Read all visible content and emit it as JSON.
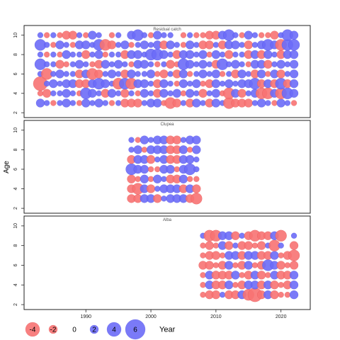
{
  "chart_data": {
    "type": "scatter",
    "style": "bubble",
    "ylabel": "Age",
    "xlabel": "Year",
    "x_ticks": [
      1990,
      2000,
      2010,
      2020
    ],
    "xlim": [
      1980.5,
      2024.5
    ],
    "y_ticks": [
      2,
      4,
      6,
      8,
      10
    ],
    "ylim": [
      1.5,
      11
    ],
    "ages": [
      3,
      4,
      5,
      6,
      7,
      8,
      9,
      10
    ],
    "colors": {
      "positive": "#6c6cf7",
      "negative": "#f77272",
      "positive_stroke": "#3b3bd6",
      "negative_stroke": "#d64040",
      "frame": "#222222"
    },
    "legend": {
      "values": [
        -4,
        -2,
        0,
        2,
        4,
        6
      ],
      "labels": [
        "-4",
        "-2",
        "0",
        "2",
        "4",
        "6"
      ]
    },
    "panels": [
      {
        "title": "Residual catch",
        "years": [
          1983,
          2022
        ],
        "rows": {
          "10": [
            1,
            -1,
            1,
            -1,
            -2,
            -2,
            1,
            -1,
            2,
            1,
            0,
            -1,
            1,
            0,
            2,
            3,
            1,
            -1,
            2,
            1,
            1,
            0,
            -1,
            1,
            -1,
            -1,
            -2,
            -2,
            2,
            3,
            1,
            -1,
            2,
            1,
            -1,
            -1,
            -2,
            1,
            3,
            2
          ],
          "9": [
            3,
            1,
            -1,
            2,
            1,
            -1,
            2,
            2,
            1,
            3,
            -3,
            -2,
            1,
            2,
            -1,
            1,
            2,
            1,
            2,
            -2,
            2,
            1,
            -1,
            2,
            1,
            -2,
            -2,
            1,
            -2,
            2,
            2,
            1,
            -2,
            1,
            2,
            3,
            2,
            -3,
            3,
            3
          ],
          "8": [
            1,
            -1,
            1,
            -1,
            2,
            1,
            1,
            -2,
            1,
            2,
            -1,
            1,
            1,
            -2,
            2,
            2,
            1,
            3,
            3,
            2,
            1,
            -2,
            2,
            2,
            1,
            2,
            -1,
            2,
            1,
            -2,
            1,
            1,
            -2,
            2,
            -2,
            2,
            1,
            -2,
            2,
            2
          ],
          "7": [
            3,
            1,
            1,
            -2,
            -1,
            1,
            2,
            1,
            -1,
            -2,
            2,
            1,
            2,
            1,
            -1,
            2,
            2,
            1,
            -1,
            1,
            -2,
            -1,
            3,
            2,
            1,
            2,
            1,
            -2,
            3,
            1,
            2,
            1,
            -1,
            2,
            2,
            -2,
            1,
            2,
            1,
            2
          ],
          "6": [
            1,
            -3,
            1,
            2,
            1,
            1,
            -2,
            2,
            -3,
            -2,
            1,
            2,
            1,
            -2,
            2,
            1,
            1,
            2,
            -1,
            -2,
            1,
            -2,
            2,
            -1,
            1,
            2,
            1,
            2,
            -1,
            1,
            -2,
            2,
            1,
            -2,
            2,
            -1,
            2,
            -2,
            1,
            2
          ],
          "5": [
            -4,
            1,
            2,
            1,
            2,
            2,
            -2,
            -2,
            2,
            3,
            2,
            1,
            -3,
            3,
            -3,
            2,
            2,
            1,
            -2,
            2,
            1,
            -1,
            2,
            1,
            2,
            -1,
            -2,
            2,
            1,
            2,
            1,
            2,
            2,
            3,
            -2,
            2,
            -2,
            3,
            -2,
            2
          ],
          "4": [
            -1,
            -2,
            1,
            1,
            2,
            1,
            -1,
            3,
            2,
            1,
            -2,
            2,
            1,
            -2,
            1,
            -1,
            2,
            1,
            -2,
            2,
            1,
            2,
            -1,
            2,
            1,
            -2,
            1,
            2,
            -1,
            -3,
            2,
            -2,
            1,
            2,
            -3,
            -3,
            2,
            -3,
            3,
            2
          ],
          "3": [
            2,
            1,
            -1,
            1,
            2,
            1,
            -1,
            2,
            1,
            2,
            1,
            -1,
            1,
            -2,
            -2,
            -2,
            1,
            2,
            2,
            -1,
            -3,
            -2,
            1,
            -2,
            2,
            1,
            -2,
            2,
            1,
            -3,
            -2,
            -2,
            -2,
            1,
            2,
            1,
            -1,
            2,
            1,
            -1
          ]
        }
      },
      {
        "title": "Clupea",
        "years": [
          1997,
          2007
        ],
        "rows": {
          "9": [
            1,
            -1,
            2,
            1,
            2,
            2,
            -2,
            -2,
            1,
            2,
            2
          ],
          "8": [
            1,
            2,
            -1,
            2,
            2,
            2,
            -2,
            -2,
            2,
            -1,
            2
          ],
          "7": [
            -2,
            2,
            2,
            -2,
            1,
            2,
            -2,
            -2,
            2,
            2,
            1
          ],
          "6": [
            3,
            2,
            2,
            -1,
            -1,
            2,
            2,
            -1,
            2,
            3,
            1
          ],
          "5": [
            -2,
            -1,
            2,
            -1,
            2,
            1,
            -2,
            -2,
            2,
            -1,
            -1
          ],
          "4": [
            -2,
            -3,
            2,
            -2,
            1,
            2,
            2,
            2,
            -2,
            2,
            -2
          ],
          "3": [
            -2,
            -2,
            2,
            2,
            -2,
            1,
            2,
            2,
            2,
            -2,
            -3
          ]
        }
      },
      {
        "title": "Alba",
        "years": [
          2008,
          2022
        ],
        "rows": {
          "9": [
            1,
            -3,
            -3,
            2,
            2,
            -2,
            1,
            -2,
            -3,
            -2,
            -2,
            2,
            -3,
            0,
            1
          ],
          "8": [
            -1,
            -2,
            -1,
            2,
            -2,
            1,
            -2,
            -2,
            -1,
            -2,
            1,
            -3,
            1,
            0,
            -2
          ],
          "7": [
            -1,
            -2,
            -2,
            -1,
            2,
            2,
            -2,
            2,
            2,
            -2,
            -2,
            2,
            -1,
            -2,
            -3
          ],
          "6": [
            -2,
            -2,
            -1,
            -2,
            2,
            -1,
            -2,
            2,
            -1,
            -2,
            3,
            2,
            -2,
            -1,
            -2
          ],
          "5": [
            -1,
            2,
            -2,
            -2,
            -2,
            2,
            -1,
            -2,
            2,
            -2,
            -1,
            2,
            -2,
            -2,
            2
          ],
          "4": [
            -1,
            2,
            -2,
            -2,
            2,
            -1,
            -2,
            2,
            2,
            -2,
            2,
            -2,
            -1,
            -2,
            2
          ],
          "3": [
            -1,
            -2,
            -2,
            1,
            -2,
            -2,
            2,
            -3,
            -4,
            -2,
            2,
            -2,
            -1,
            -1,
            2
          ]
        }
      }
    ]
  }
}
